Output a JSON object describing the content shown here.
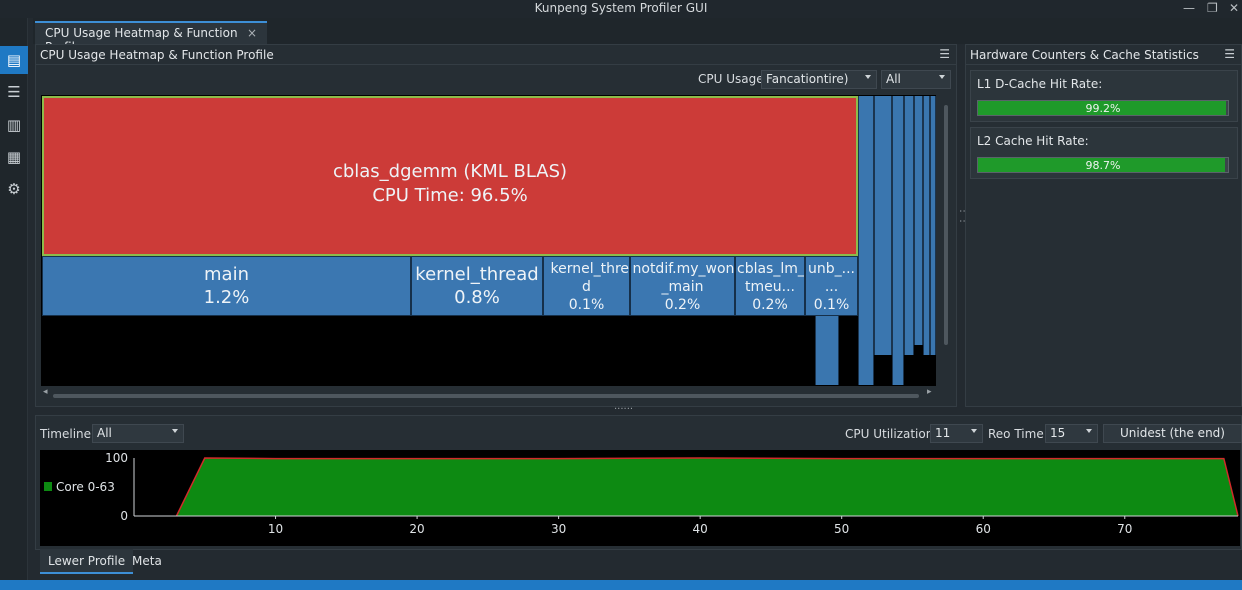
{
  "window": {
    "title": "Kunpeng System Profiler GUI"
  },
  "tabs": [
    {
      "label": "CPU Usage Heatmap & Function Profile"
    }
  ],
  "heatmap_panel": {
    "title": "CPU Usage Heatmap & Function Profile",
    "cpu_usage_label": "CPU Usage:",
    "cpu_usage_select": "Fancationtire)",
    "filter_select": "All",
    "cells": [
      {
        "name": "cblas_dgemm (KML BLAS)",
        "value": "CPU Time: 96.5%"
      },
      {
        "name": "main",
        "value": "1.2%"
      },
      {
        "name": "kernel_thread",
        "value": "0.8%"
      },
      {
        "name": "kernel_threa d",
        "value": "0.1%"
      },
      {
        "name": "notdif.my_wont _main",
        "value": "0.2%"
      },
      {
        "name": "cblas_lm_ tmeu...",
        "value": "0.2%"
      },
      {
        "name": "unb_... ...",
        "value": "0.1%"
      }
    ]
  },
  "hardware_panel": {
    "title": "Hardware Counters & Cache Statistics",
    "stats": [
      {
        "label": "L1 D-Cache Hit Rate:",
        "value": "99.2%",
        "percent": 99.2
      },
      {
        "label": "L2 Cache Hit Rate:",
        "value": "98.7%",
        "percent": 98.7
      }
    ]
  },
  "timeline_panel": {
    "timeline_label": "Timeline:",
    "timeline_select": "All",
    "cpu_util_label": "CPU Utilization:",
    "cpu_util_select": "11",
    "reo_time_label": "Reo Time:",
    "reo_time_select": "15",
    "action_button": "Unidest (the end)"
  },
  "bottom_tabs": [
    {
      "label": "Lewer Profile"
    },
    {
      "label": "Meta"
    }
  ],
  "colors": {
    "accent": "#1f79c4",
    "hot": "#cc3b38",
    "cool": "#3b77b1",
    "util_fill": "#0d8a12",
    "util_line": "#d12a2a"
  },
  "chart_data": {
    "type": "area",
    "series": [
      {
        "name": "Core 0-63",
        "x": [
          3,
          5,
          10,
          20,
          30,
          40,
          50,
          60,
          70,
          77,
          78
        ],
        "values": [
          0,
          100,
          99,
          99,
          99,
          100,
          99,
          99,
          99,
          99,
          0
        ]
      }
    ],
    "xlim": [
      0,
      78
    ],
    "ylim": [
      0,
      100
    ],
    "xticks": [
      10,
      20,
      30,
      40,
      50,
      60,
      70
    ],
    "yticks": [
      0,
      100
    ],
    "legend": "left"
  }
}
